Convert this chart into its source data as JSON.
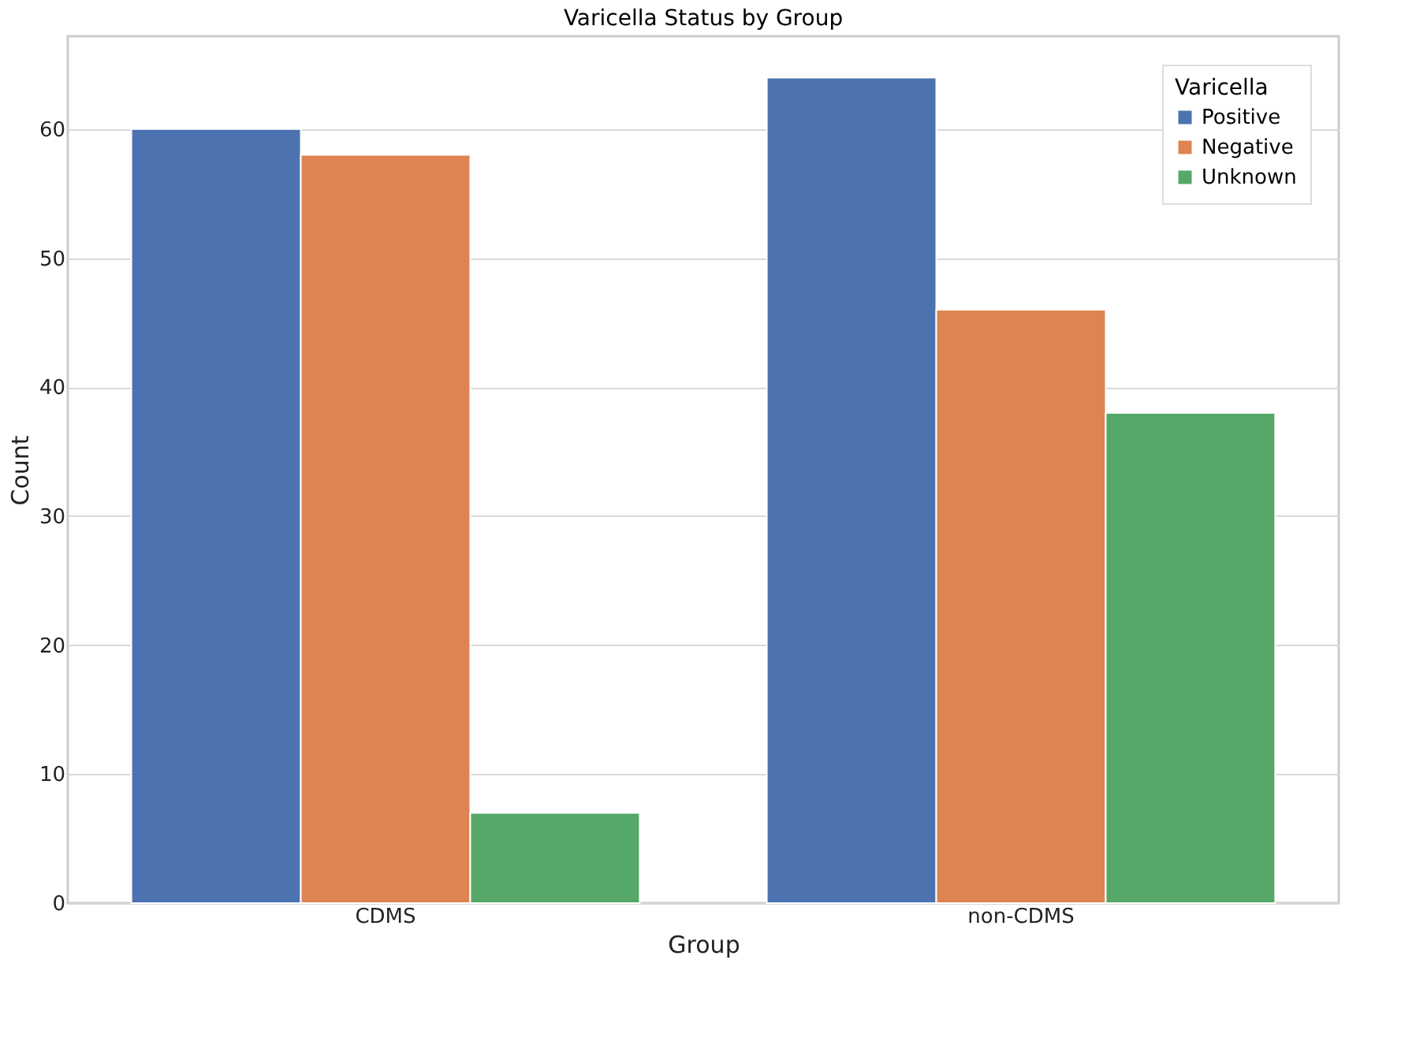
{
  "chart_data": {
    "type": "bar",
    "title": "Varicella Status by Group",
    "xlabel": "Group",
    "ylabel": "Count",
    "legend_title": "Varicella",
    "categories": [
      "CDMS",
      "non-CDMS"
    ],
    "series": [
      {
        "name": "Positive",
        "color": "#4c72b0",
        "values": [
          60,
          64
        ]
      },
      {
        "name": "Negative",
        "color": "#dd8452",
        "values": [
          58,
          46
        ]
      },
      {
        "name": "Unknown",
        "color": "#55a868",
        "values": [
          7,
          38
        ]
      }
    ],
    "ylim": [
      0,
      67.2
    ],
    "yticks": [
      0,
      10,
      20,
      30,
      40,
      50,
      60
    ],
    "grid": "y",
    "legend": "top right"
  }
}
